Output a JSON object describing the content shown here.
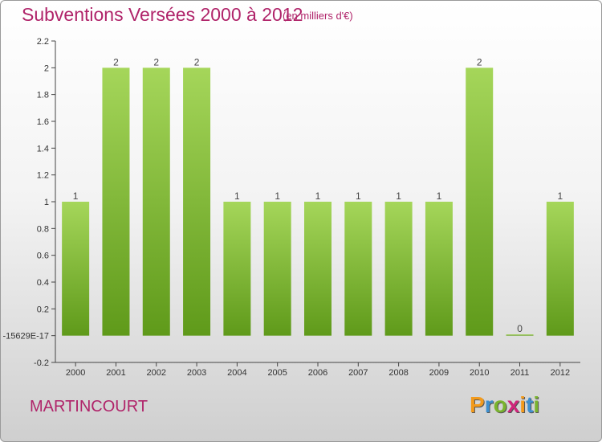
{
  "title": "Subventions Versées 2000 à 2012",
  "subtitle": "(en milliers d'€)",
  "commune": "MARTINCOURT",
  "brand": {
    "letters": [
      "P",
      "r",
      "o",
      "x",
      "i",
      "t",
      "i"
    ],
    "colors": [
      "#f29a1c",
      "#3d8fcf",
      "#7ab42e",
      "#d0257a",
      "#f29a1c",
      "#3d8fcf",
      "#7ab42e"
    ]
  },
  "colors": {
    "accent": "#b0246a",
    "bar_light": "#a5d65a",
    "bar_dark": "#5f9a1a",
    "axis": "#444444"
  },
  "chart_data": {
    "type": "bar",
    "title": "Subventions Versées 2000 à 2012",
    "unit": "(en milliers d'€)",
    "categories": [
      "2000",
      "2001",
      "2002",
      "2003",
      "2004",
      "2005",
      "2006",
      "2007",
      "2008",
      "2009",
      "2010",
      "2011",
      "2012"
    ],
    "values": [
      1,
      2,
      2,
      2,
      1,
      1,
      1,
      1,
      1,
      1,
      2,
      0,
      1
    ],
    "data_labels": [
      "1",
      "2",
      "2",
      "2",
      "1",
      "1",
      "1",
      "1",
      "1",
      "1",
      "2",
      "0",
      "1"
    ],
    "ylim": [
      -0.2,
      2.2
    ],
    "yticks": [
      -0.2,
      0,
      0.2,
      0.4,
      0.6,
      0.8,
      1,
      1.2,
      1.4,
      1.6,
      1.8,
      2,
      2.2
    ],
    "ytick_labels": [
      "-0.2",
      "-15629E-17",
      "0.2",
      "0.4",
      "0.6",
      "0.8",
      "1",
      "1.2",
      "1.4",
      "1.6",
      "1.8",
      "2",
      "2.2"
    ],
    "grid": false,
    "legend": "none"
  }
}
